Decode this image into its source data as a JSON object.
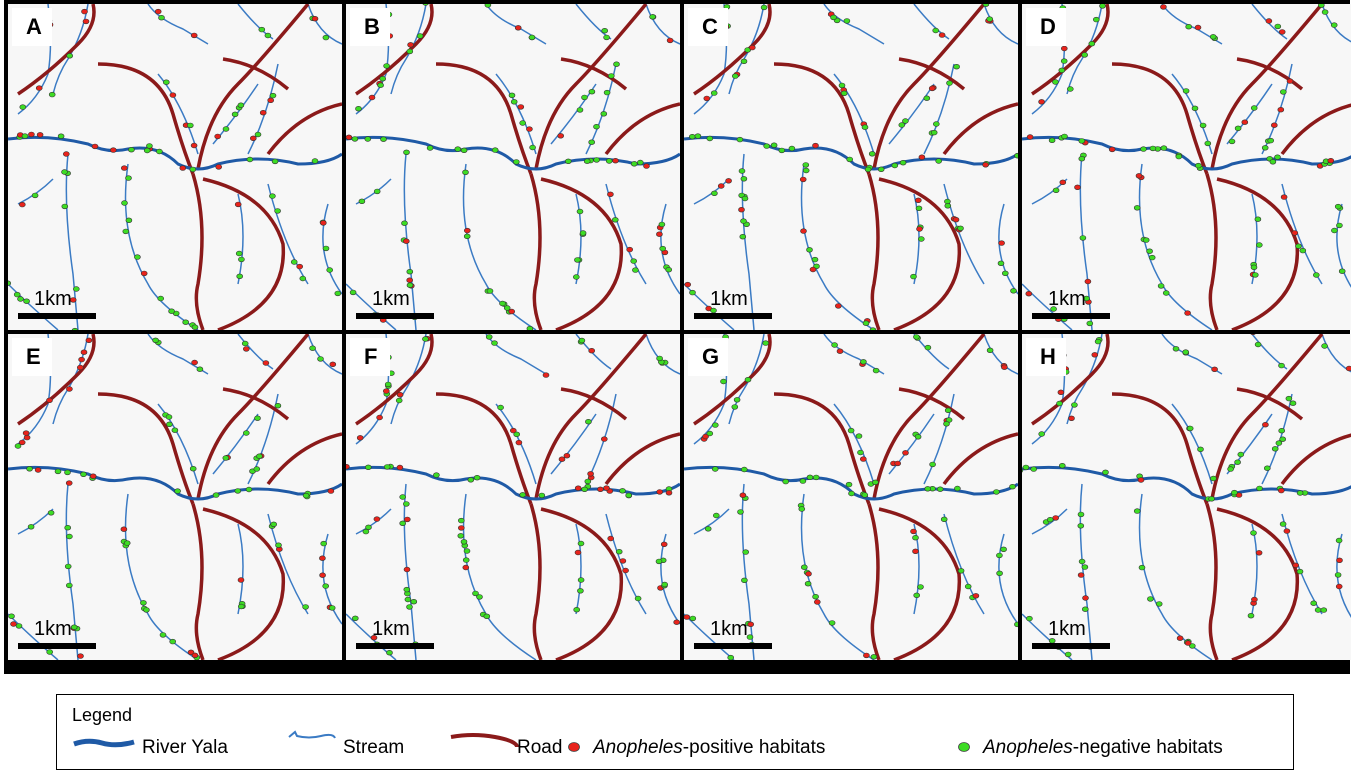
{
  "panels": [
    {
      "label": "A",
      "scale_label": "1km"
    },
    {
      "label": "B",
      "scale_label": "1km"
    },
    {
      "label": "C",
      "scale_label": "1km"
    },
    {
      "label": "D",
      "scale_label": "1km"
    },
    {
      "label": "E",
      "scale_label": "1km"
    },
    {
      "label": "F",
      "scale_label": "1km"
    },
    {
      "label": "G",
      "scale_label": "1km"
    },
    {
      "label": "H",
      "scale_label": "1km"
    }
  ],
  "legend": {
    "title": "Legend",
    "river": {
      "label": "River Yala",
      "color": "#1f5aa6"
    },
    "stream": {
      "label": "Stream",
      "color": "#3b7bc4"
    },
    "road": {
      "label": "Road",
      "color": "#8b1a1a"
    },
    "positive": {
      "prefix": "Anopheles",
      "suffix": "-positive habitats",
      "color": "#e8231c"
    },
    "negative": {
      "prefix": "Anopheles",
      "suffix": "-negative habitats",
      "color": "#3ddc24"
    }
  }
}
